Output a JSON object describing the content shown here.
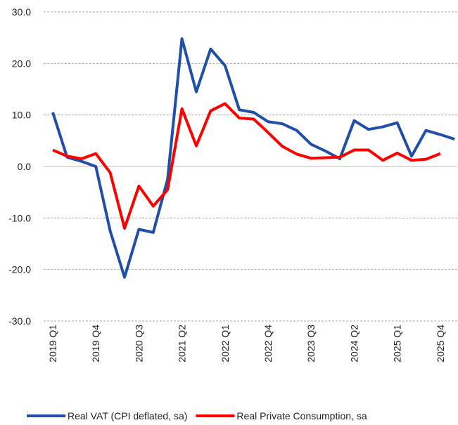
{
  "chart_data": {
    "type": "line",
    "categories": [
      "2019 Q1",
      null,
      null,
      "2019 Q4",
      null,
      null,
      "2020 Q3",
      null,
      null,
      "2021 Q2",
      null,
      null,
      "2022 Q1",
      null,
      null,
      "2022 Q4",
      null,
      null,
      "2023 Q3",
      null,
      null,
      "2024 Q2",
      null,
      null,
      "2025 Q1",
      null,
      null,
      "2025 Q4",
      null
    ],
    "series": [
      {
        "name": "Real VAT (CPI deflated, sa)",
        "color": "#1f4fa8",
        "values": [
          10.5,
          1.8,
          1.0,
          0.0,
          -12.5,
          -21.5,
          -12.2,
          -12.8,
          -2.5,
          24.8,
          14.5,
          22.8,
          19.6,
          11.0,
          10.5,
          8.7,
          8.3,
          7.0,
          4.3,
          3.0,
          1.5,
          8.9,
          7.2,
          7.7,
          8.5,
          2.0,
          7.0,
          6.2,
          5.3
        ]
      },
      {
        "name": "Real Private Consumption, sa",
        "color": "#ff0000",
        "values": [
          3.2,
          2.0,
          1.5,
          2.5,
          -1.2,
          -12.0,
          -3.8,
          -7.7,
          -4.5,
          11.2,
          4.0,
          10.8,
          12.2,
          9.4,
          9.2,
          6.6,
          3.9,
          2.4,
          1.6,
          1.7,
          1.8,
          3.2,
          3.2,
          1.2,
          2.6,
          1.2,
          1.4,
          2.5,
          null
        ]
      }
    ],
    "ylim": [
      -30,
      30
    ],
    "yticks": [
      {
        "value": -30,
        "label": "-30.0"
      },
      {
        "value": -20,
        "label": "-20.0"
      },
      {
        "value": -10,
        "label": "-10.0"
      },
      {
        "value": 0,
        "label": "0.0"
      },
      {
        "value": 10,
        "label": "10.0"
      },
      {
        "value": 20,
        "label": "20.0"
      },
      {
        "value": 30,
        "label": "30.0"
      }
    ],
    "grid": true,
    "legend": "bottom"
  }
}
